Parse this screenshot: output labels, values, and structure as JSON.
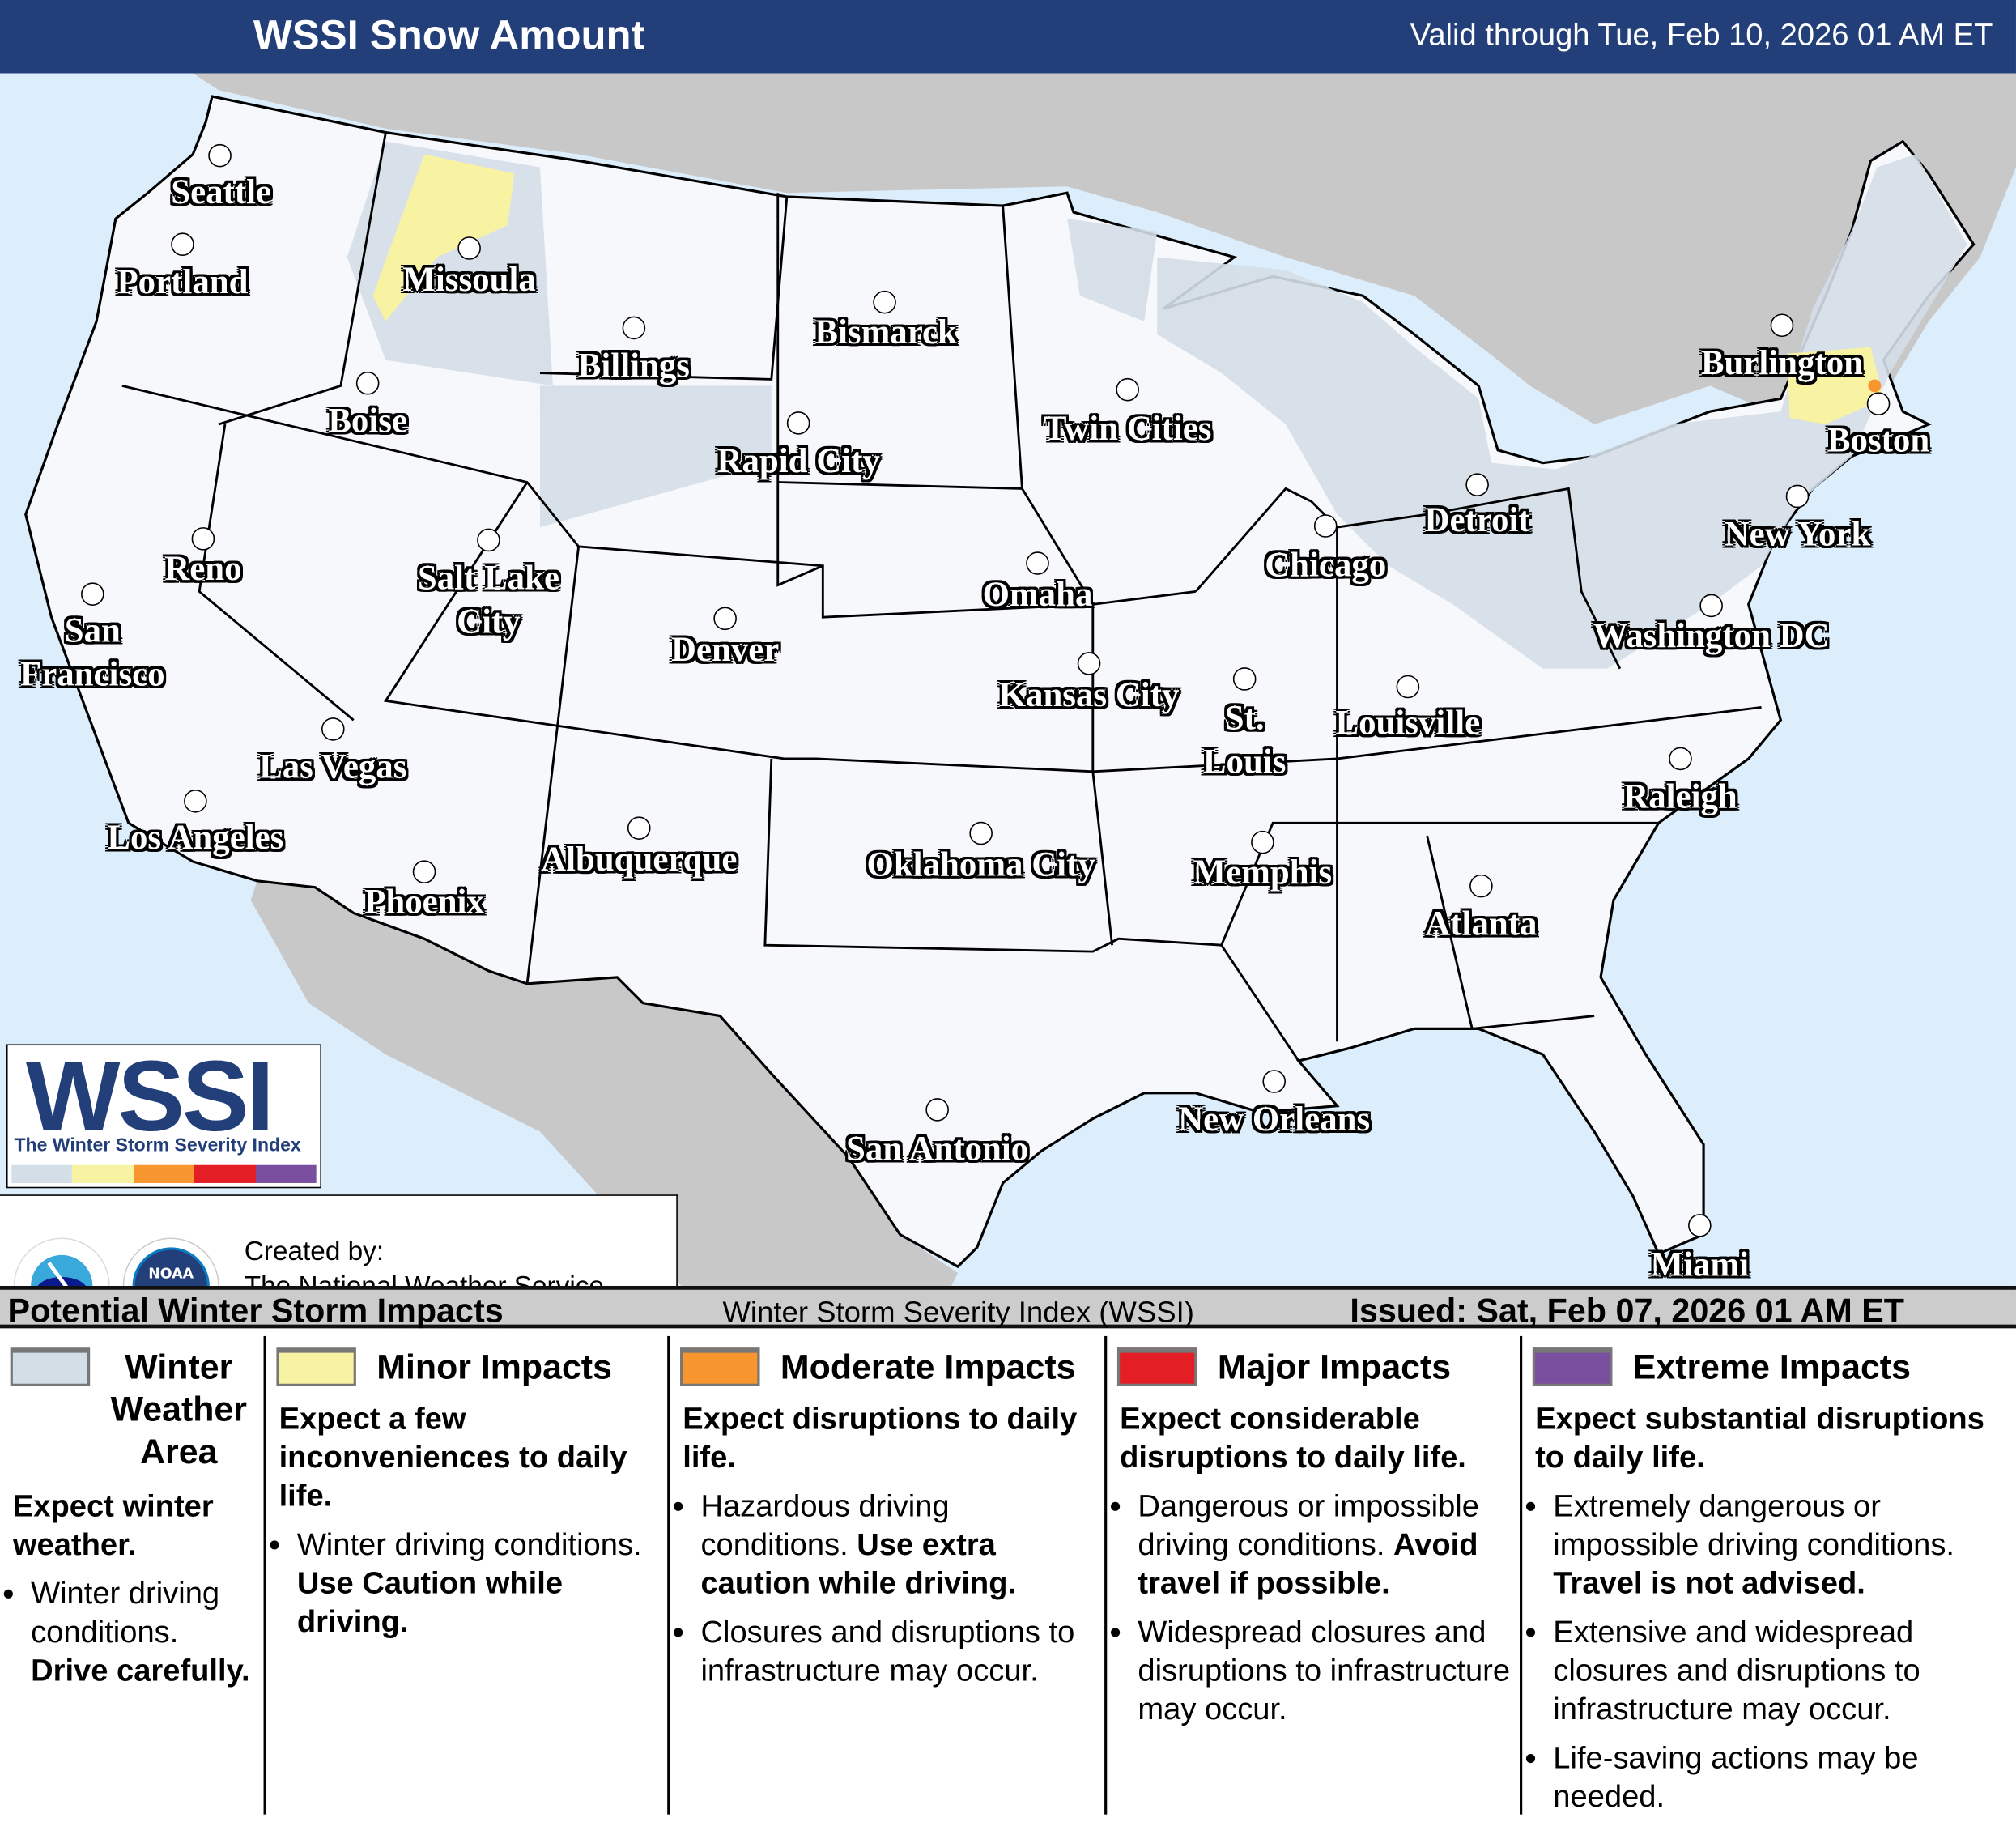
{
  "header": {
    "title": "WSSI Snow Amount",
    "valid": "Valid through Tue, Feb 10, 2026 01 AM ET"
  },
  "colors": {
    "header_bg": "#233f7a",
    "ocean": "#dcedfb",
    "land": "#f7f8fc",
    "other_land": "#c8c8c8",
    "winter_weather": "#d4dee7",
    "minor": "#f8f3a3",
    "moderate": "#f7962e",
    "major": "#e31e24",
    "extreme": "#7a4fa0"
  },
  "cities": [
    "Seattle",
    "Portland",
    "Missoula",
    "Billings",
    "Bismarck",
    "Boise",
    "Rapid City",
    "Twin Cities",
    "Burlington",
    "Boston",
    "Reno",
    "Salt Lake\nCity",
    "Detroit",
    "New York",
    "Chicago",
    "Omaha",
    "San\nFrancisco",
    "Denver",
    "Washington DC",
    "Kansas City",
    "St.\nLouis",
    "Louisville",
    "Las Vegas",
    "Raleigh",
    "Los Angeles",
    "Oklahoma City",
    "Albuquerque",
    "Memphis",
    "Phoenix",
    "Atlanta",
    "New Orleans",
    "San Antonio",
    "Miami"
  ],
  "logo": {
    "text": "WSSI",
    "subtitle": "The Winter Storm Severity Index"
  },
  "credit": {
    "text": "Created by:\nThe National Weather Service\nWeather Prediction Center",
    "nws_logo": "NATIONAL WEATHER SERVICE",
    "noaa_logo": "NOAA"
  },
  "bar": {
    "left": "Potential Winter Storm Impacts",
    "middle": "Winter Storm Severity Index (WSSI)",
    "right": "Issued: Sat, Feb 07, 2026 01 AM ET"
  },
  "legend": [
    {
      "title": "Winter\nWeather\nArea",
      "head": "Expect winter weather.",
      "bullets": [
        {
          "text": "Winter driving conditions. ",
          "bold": "Drive carefully."
        }
      ]
    },
    {
      "title": "Minor Impacts",
      "head": "Expect a few inconveniences to daily life.",
      "bullets": [
        {
          "text": "Winter driving conditions. ",
          "bold": "Use Caution while driving."
        }
      ]
    },
    {
      "title": "Moderate Impacts",
      "head": "Expect disruptions to daily life.",
      "bullets": [
        {
          "text": "Hazardous driving conditions. ",
          "bold": "Use extra caution while driving."
        },
        {
          "text": "Closures and disruptions to infrastructure may occur.",
          "bold": ""
        }
      ]
    },
    {
      "title": "Major Impacts",
      "head": "Expect considerable disruptions to daily life.",
      "bullets": [
        {
          "text": "Dangerous or impossible driving conditions. ",
          "bold": "Avoid travel if possible."
        },
        {
          "text": "Widespread closures and disruptions to infrastructure may occur.",
          "bold": ""
        }
      ]
    },
    {
      "title": "Extreme Impacts",
      "head": "Expect substantial disruptions to daily life.",
      "bullets": [
        {
          "text": "Extremely dangerous or impossible driving conditions. ",
          "bold": "Travel is not advised."
        },
        {
          "text": "Extensive and widespread closures and disruptions to infrastructure may occur.",
          "bold": ""
        },
        {
          "text": "Life-saving actions may be needed.",
          "bold": ""
        }
      ]
    }
  ]
}
